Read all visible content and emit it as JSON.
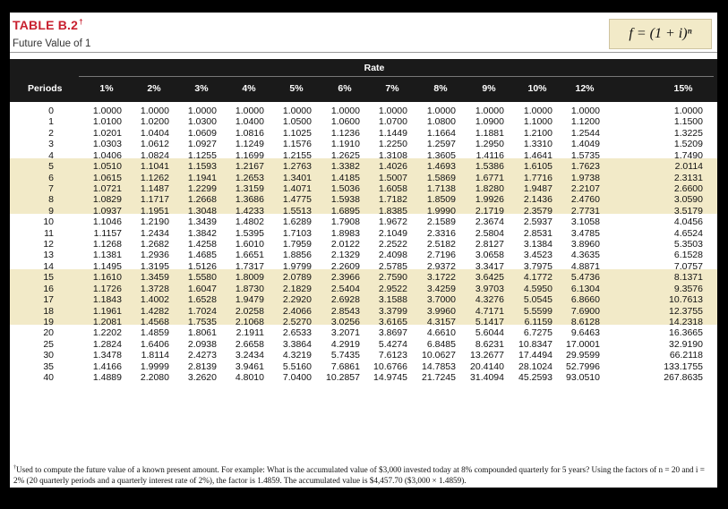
{
  "table": {
    "title": "TABLE B.2",
    "title_mark": "†",
    "subtitle": "Future Value of 1",
    "formula": "f = (1 + i)ⁿ",
    "rate_label": "Rate",
    "period_label": "Periods",
    "rates": [
      "1%",
      "2%",
      "3%",
      "4%",
      "5%",
      "6%",
      "7%",
      "8%",
      "9%",
      "10%",
      "12%",
      "15%"
    ],
    "rows": [
      {
        "n": "0",
        "v": [
          "1.0000",
          "1.0000",
          "1.0000",
          "1.0000",
          "1.0000",
          "1.0000",
          "1.0000",
          "1.0000",
          "1.0000",
          "1.0000",
          "1.0000",
          "1.0000"
        ]
      },
      {
        "n": "1",
        "v": [
          "1.0100",
          "1.0200",
          "1.0300",
          "1.0400",
          "1.0500",
          "1.0600",
          "1.0700",
          "1.0800",
          "1.0900",
          "1.1000",
          "1.1200",
          "1.1500"
        ]
      },
      {
        "n": "2",
        "v": [
          "1.0201",
          "1.0404",
          "1.0609",
          "1.0816",
          "1.1025",
          "1.1236",
          "1.1449",
          "1.1664",
          "1.1881",
          "1.2100",
          "1.2544",
          "1.3225"
        ]
      },
      {
        "n": "3",
        "v": [
          "1.0303",
          "1.0612",
          "1.0927",
          "1.1249",
          "1.1576",
          "1.1910",
          "1.2250",
          "1.2597",
          "1.2950",
          "1.3310",
          "1.4049",
          "1.5209"
        ]
      },
      {
        "n": "4",
        "v": [
          "1.0406",
          "1.0824",
          "1.1255",
          "1.1699",
          "1.2155",
          "1.2625",
          "1.3108",
          "1.3605",
          "1.4116",
          "1.4641",
          "1.5735",
          "1.7490"
        ]
      },
      {
        "n": "5",
        "v": [
          "1.0510",
          "1.1041",
          "1.1593",
          "1.2167",
          "1.2763",
          "1.3382",
          "1.4026",
          "1.4693",
          "1.5386",
          "1.6105",
          "1.7623",
          "2.0114"
        ]
      },
      {
        "n": "6",
        "v": [
          "1.0615",
          "1.1262",
          "1.1941",
          "1.2653",
          "1.3401",
          "1.4185",
          "1.5007",
          "1.5869",
          "1.6771",
          "1.7716",
          "1.9738",
          "2.3131"
        ]
      },
      {
        "n": "7",
        "v": [
          "1.0721",
          "1.1487",
          "1.2299",
          "1.3159",
          "1.4071",
          "1.5036",
          "1.6058",
          "1.7138",
          "1.8280",
          "1.9487",
          "2.2107",
          "2.6600"
        ]
      },
      {
        "n": "8",
        "v": [
          "1.0829",
          "1.1717",
          "1.2668",
          "1.3686",
          "1.4775",
          "1.5938",
          "1.7182",
          "1.8509",
          "1.9926",
          "2.1436",
          "2.4760",
          "3.0590"
        ]
      },
      {
        "n": "9",
        "v": [
          "1.0937",
          "1.1951",
          "1.3048",
          "1.4233",
          "1.5513",
          "1.6895",
          "1.8385",
          "1.9990",
          "2.1719",
          "2.3579",
          "2.7731",
          "3.5179"
        ]
      },
      {
        "n": "10",
        "v": [
          "1.1046",
          "1.2190",
          "1.3439",
          "1.4802",
          "1.6289",
          "1.7908",
          "1.9672",
          "2.1589",
          "2.3674",
          "2.5937",
          "3.1058",
          "4.0456"
        ]
      },
      {
        "n": "11",
        "v": [
          "1.1157",
          "1.2434",
          "1.3842",
          "1.5395",
          "1.7103",
          "1.8983",
          "2.1049",
          "2.3316",
          "2.5804",
          "2.8531",
          "3.4785",
          "4.6524"
        ]
      },
      {
        "n": "12",
        "v": [
          "1.1268",
          "1.2682",
          "1.4258",
          "1.6010",
          "1.7959",
          "2.0122",
          "2.2522",
          "2.5182",
          "2.8127",
          "3.1384",
          "3.8960",
          "5.3503"
        ]
      },
      {
        "n": "13",
        "v": [
          "1.1381",
          "1.2936",
          "1.4685",
          "1.6651",
          "1.8856",
          "2.1329",
          "2.4098",
          "2.7196",
          "3.0658",
          "3.4523",
          "4.3635",
          "6.1528"
        ]
      },
      {
        "n": "14",
        "v": [
          "1.1495",
          "1.3195",
          "1.5126",
          "1.7317",
          "1.9799",
          "2.2609",
          "2.5785",
          "2.9372",
          "3.3417",
          "3.7975",
          "4.8871",
          "7.0757"
        ]
      },
      {
        "n": "15",
        "v": [
          "1.1610",
          "1.3459",
          "1.5580",
          "1.8009",
          "2.0789",
          "2.3966",
          "2.7590",
          "3.1722",
          "3.6425",
          "4.1772",
          "5.4736",
          "8.1371"
        ]
      },
      {
        "n": "16",
        "v": [
          "1.1726",
          "1.3728",
          "1.6047",
          "1.8730",
          "2.1829",
          "2.5404",
          "2.9522",
          "3.4259",
          "3.9703",
          "4.5950",
          "6.1304",
          "9.3576"
        ]
      },
      {
        "n": "17",
        "v": [
          "1.1843",
          "1.4002",
          "1.6528",
          "1.9479",
          "2.2920",
          "2.6928",
          "3.1588",
          "3.7000",
          "4.3276",
          "5.0545",
          "6.8660",
          "10.7613"
        ]
      },
      {
        "n": "18",
        "v": [
          "1.1961",
          "1.4282",
          "1.7024",
          "2.0258",
          "2.4066",
          "2.8543",
          "3.3799",
          "3.9960",
          "4.7171",
          "5.5599",
          "7.6900",
          "12.3755"
        ]
      },
      {
        "n": "19",
        "v": [
          "1.2081",
          "1.4568",
          "1.7535",
          "2.1068",
          "2.5270",
          "3.0256",
          "3.6165",
          "4.3157",
          "5.1417",
          "6.1159",
          "8.6128",
          "14.2318"
        ]
      },
      {
        "n": "20",
        "v": [
          "1.2202",
          "1.4859",
          "1.8061",
          "2.1911",
          "2.6533",
          "3.2071",
          "3.8697",
          "4.6610",
          "5.6044",
          "6.7275",
          "9.6463",
          "16.3665"
        ]
      },
      {
        "n": "25",
        "v": [
          "1.2824",
          "1.6406",
          "2.0938",
          "2.6658",
          "3.3864",
          "4.2919",
          "5.4274",
          "6.8485",
          "8.6231",
          "10.8347",
          "17.0001",
          "32.9190"
        ]
      },
      {
        "n": "30",
        "v": [
          "1.3478",
          "1.8114",
          "2.4273",
          "3.2434",
          "4.3219",
          "5.7435",
          "7.6123",
          "10.0627",
          "13.2677",
          "17.4494",
          "29.9599",
          "66.2118"
        ]
      },
      {
        "n": "35",
        "v": [
          "1.4166",
          "1.9999",
          "2.8139",
          "3.9461",
          "5.5160",
          "7.6861",
          "10.6766",
          "14.7853",
          "20.4140",
          "28.1024",
          "52.7996",
          "133.1755"
        ]
      },
      {
        "n": "40",
        "v": [
          "1.4889",
          "2.2080",
          "3.2620",
          "4.8010",
          "7.0400",
          "10.2857",
          "14.9745",
          "21.7245",
          "31.4094",
          "45.2593",
          "93.0510",
          "267.8635"
        ]
      }
    ],
    "footnote_mark": "†",
    "footnote": "Used to compute the future value of a known present amount. For example: What is the accumulated value of $3,000 invested today at 8% compounded quarterly for 5 years? Using the factors of n = 20 and i = 2% (20 quarterly periods and a quarterly interest rate of 2%), the factor is 1.4859. The accumulated value is $4,457.70 ($3,000 × 1.4859)."
  }
}
